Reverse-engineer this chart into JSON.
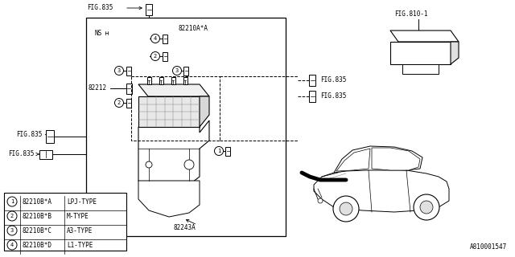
{
  "background_color": "#ffffff",
  "part_number": "A810001547",
  "legend_items": [
    {
      "num": "1",
      "code": "82210B*A",
      "type": "LPJ-TYPE"
    },
    {
      "num": "2",
      "code": "82210B*B",
      "type": "M-TYPE"
    },
    {
      "num": "3",
      "code": "82210B*C",
      "type": "A3-TYPE"
    },
    {
      "num": "4",
      "code": "82210B*D",
      "type": "L1-TYPE"
    }
  ],
  "fig835_top_label": "FIG.835",
  "fig810_label": "FIG.810-1",
  "fig835_right1_label": "FIG.835",
  "fig835_right2_label": "FIG.835",
  "fig835_left1_label": "FIG.835",
  "fig835_left2_label": "FIG.835",
  "label_82210": "82210A*A",
  "label_82212": "82212",
  "label_82243": "82243A",
  "label_ns": "NS"
}
